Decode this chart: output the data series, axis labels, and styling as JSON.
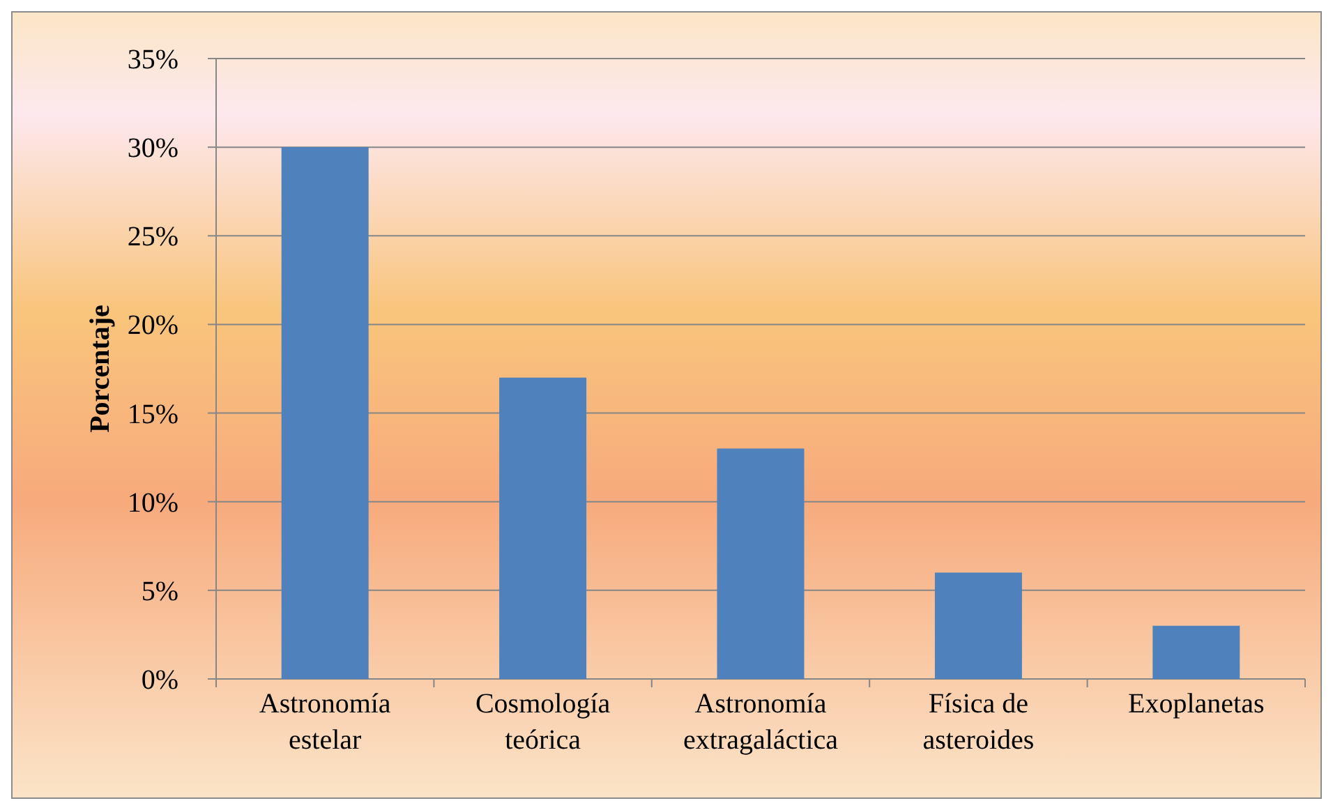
{
  "chart_data": {
    "type": "bar",
    "ylabel": "Porcentaje",
    "categories": [
      "Astronomía estelar",
      "Cosmología teórica",
      "Astronomía extragaláctica",
      "Física de asteroides",
      "Exoplanetas"
    ],
    "values": [
      30,
      17,
      13,
      6,
      3
    ],
    "color": "#4f81bd",
    "ylim": [
      0,
      35
    ],
    "yticks": [
      {
        "value": 0,
        "label": "0%"
      },
      {
        "value": 5,
        "label": "5%"
      },
      {
        "value": 10,
        "label": "10%"
      },
      {
        "value": 15,
        "label": "15%"
      },
      {
        "value": 20,
        "label": "20%"
      },
      {
        "value": 25,
        "label": "25%"
      },
      {
        "value": 30,
        "label": "30%"
      },
      {
        "value": 35,
        "label": "35%"
      }
    ],
    "grid": "y"
  }
}
